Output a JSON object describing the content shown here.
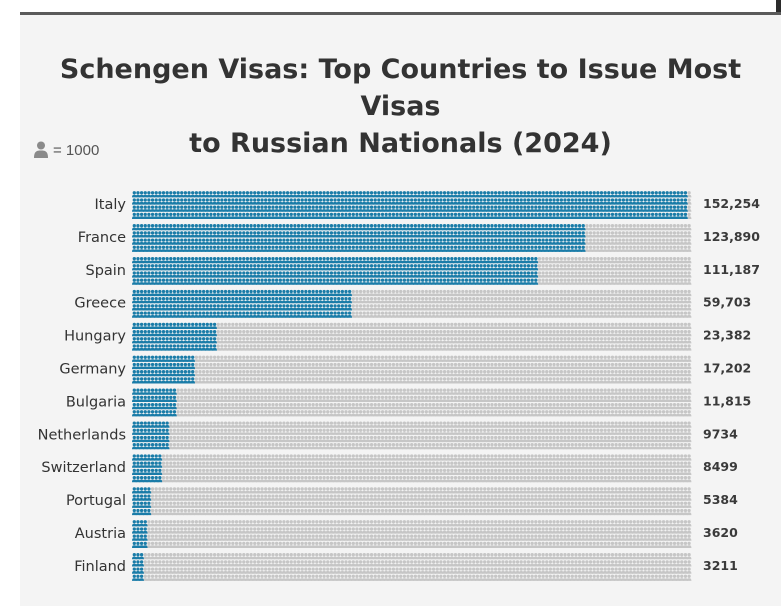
{
  "title_line1": "Schengen Visas: Top Countries to Issue Most Visas",
  "title_line2": "to Russian Nationals (2024)",
  "legend": {
    "icon": "person-icon",
    "label": "= 1000"
  },
  "colors": {
    "filled": "#1a7ca8",
    "empty": "#c6c6c6",
    "background": "#f4f4f4"
  },
  "chart_data": {
    "type": "pictogram",
    "unit": "= 1000",
    "categories": [
      "Italy",
      "France",
      "Spain",
      "Greece",
      "Hungary",
      "Germany",
      "Bulgaria",
      "Netherlands",
      "Switzerland",
      "Portugal",
      "Austria",
      "Finland"
    ],
    "values": [
      152254,
      123890,
      111187,
      59703,
      23382,
      17202,
      11815,
      9734,
      8499,
      5384,
      3620,
      3211
    ],
    "value_labels": [
      "152,254",
      "123,890",
      "111,187",
      "59,703",
      "23,382",
      "17,202",
      "11,815",
      "9734",
      "8499",
      "5384",
      "3620",
      "3211"
    ],
    "max_icons": 153
  }
}
